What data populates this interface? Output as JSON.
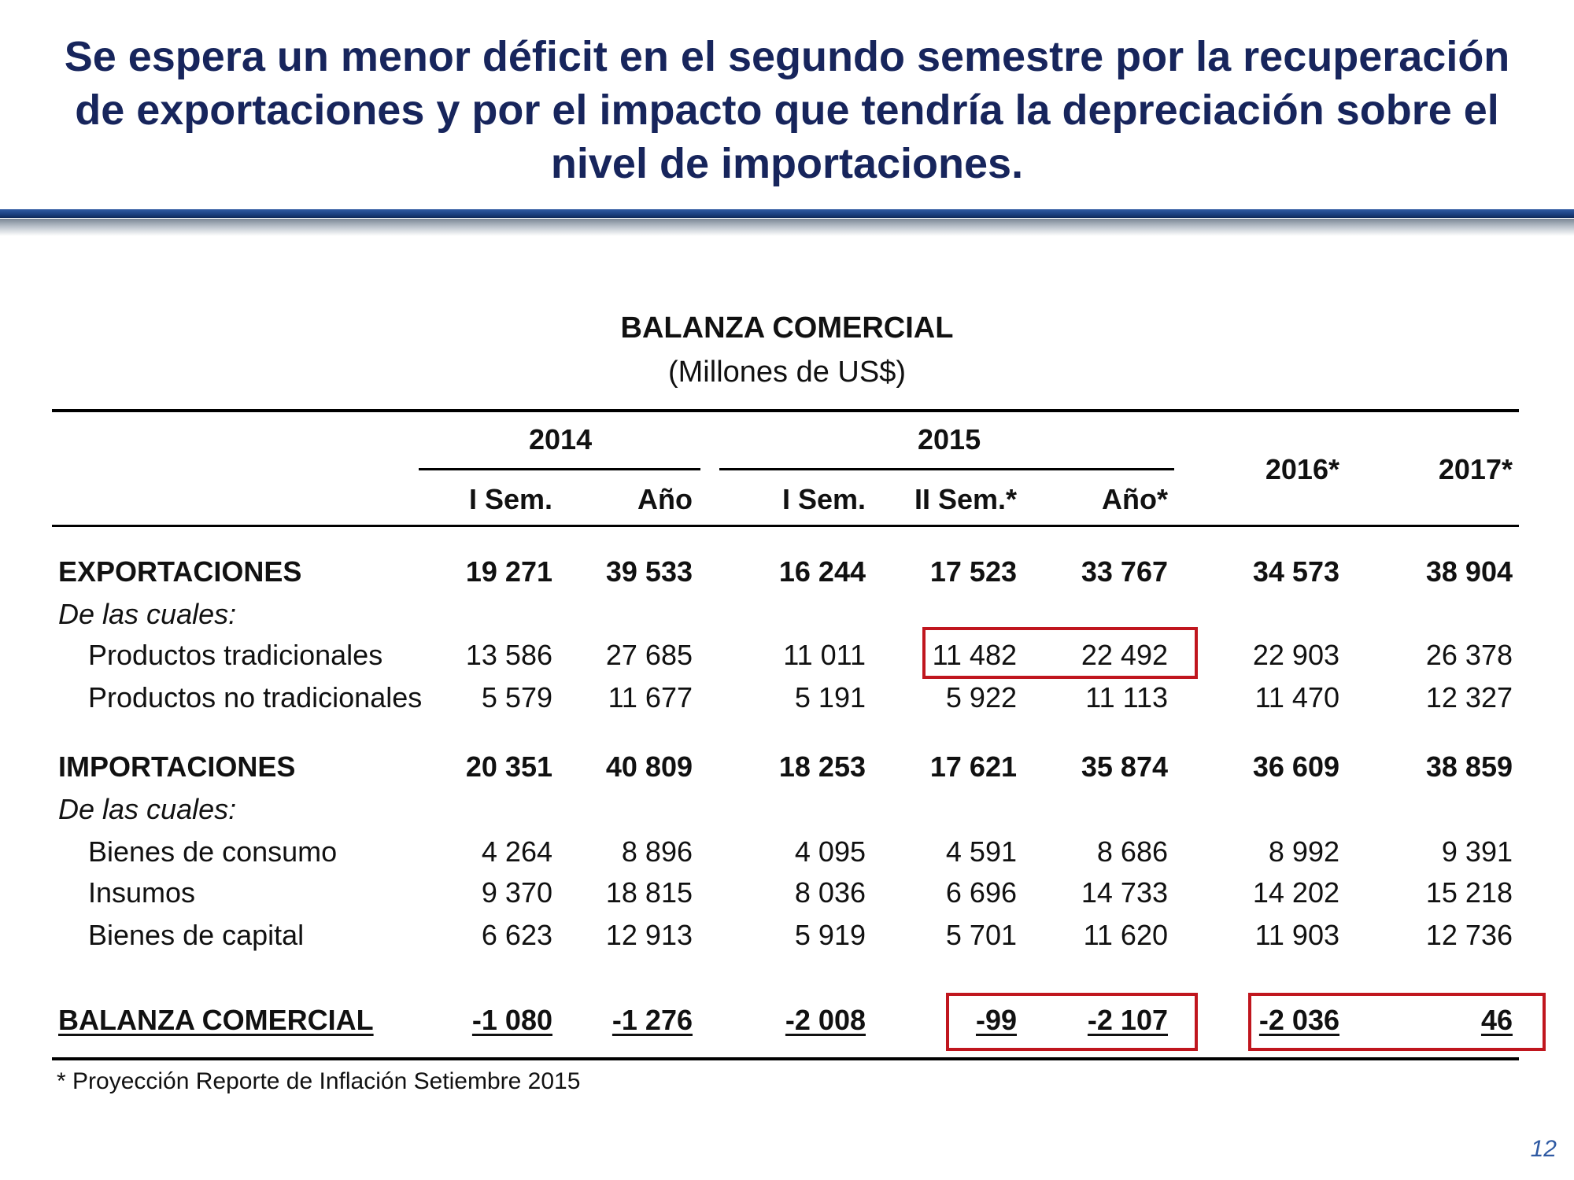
{
  "headline": [
    "Se espera un menor déficit en el segundo semestre por la recuperación",
    "de exportaciones y por el impacto que tendría la depreciación sobre el",
    "nivel de importaciones."
  ],
  "table": {
    "title": "BALANZA COMERCIAL",
    "unit": "(Millones de US$)",
    "group_headers": {
      "y2014": "2014",
      "y2015": "2015",
      "y2016": "2016*",
      "y2017": "2017*"
    },
    "sub_headers": [
      "I Sem.",
      "Año",
      "I Sem.",
      "II Sem.*",
      "Año*"
    ],
    "rows": [
      {
        "label": "EXPORTACIONES",
        "values": [
          "19 271",
          "39 533",
          "16 244",
          "17 523",
          "33 767",
          "34 573",
          "38 904"
        ]
      },
      {
        "label": "De las cuales:"
      },
      {
        "label": "Productos tradicionales",
        "values": [
          "13 586",
          "27 685",
          "11 011",
          "11 482",
          "22 492",
          "22 903",
          "26 378"
        ]
      },
      {
        "label": "Productos no tradicionales",
        "values": [
          "5 579",
          "11 677",
          "5 191",
          "5 922",
          "11 113",
          "11 470",
          "12 327"
        ]
      },
      {
        "label": "IMPORTACIONES",
        "values": [
          "20 351",
          "40 809",
          "18 253",
          "17 621",
          "35 874",
          "36 609",
          "38 859"
        ]
      },
      {
        "label": "De las cuales:"
      },
      {
        "label": "Bienes de consumo",
        "values": [
          "4 264",
          "8 896",
          "4 095",
          "4 591",
          "8 686",
          "8 992",
          "9 391"
        ]
      },
      {
        "label": "Insumos",
        "values": [
          "9 370",
          "18 815",
          "8 036",
          "6 696",
          "14 733",
          "14 202",
          "15 218"
        ]
      },
      {
        "label": "Bienes de capital",
        "values": [
          "6 623",
          "12 913",
          "5 919",
          "5 701",
          "11 620",
          "11 903",
          "12 736"
        ]
      },
      {
        "label": "BALANZA COMERCIAL",
        "values": [
          "-1 080",
          "-1 276",
          "-2 008",
          "-99",
          "-2 107",
          "-2 036",
          "46"
        ]
      }
    ],
    "footnote": "* Proyección Reporte de Inflación Setiembre 2015",
    "highlight_color": "#c0161e"
  },
  "page_number": "12",
  "colors": {
    "headline": "#17255c",
    "rule": "#1b3f7e"
  }
}
